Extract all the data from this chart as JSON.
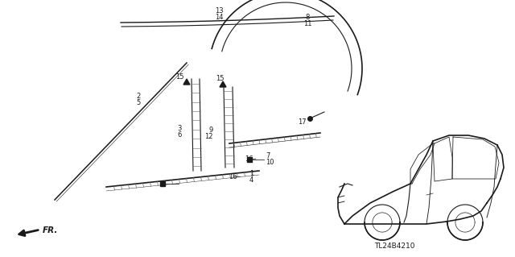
{
  "bg_color": "#ffffff",
  "dark": "#1a1a1a",
  "gray": "#666666",
  "text_content": {
    "part_code": "TL24B4210"
  },
  "figsize": [
    6.4,
    3.19
  ],
  "dpi": 100
}
